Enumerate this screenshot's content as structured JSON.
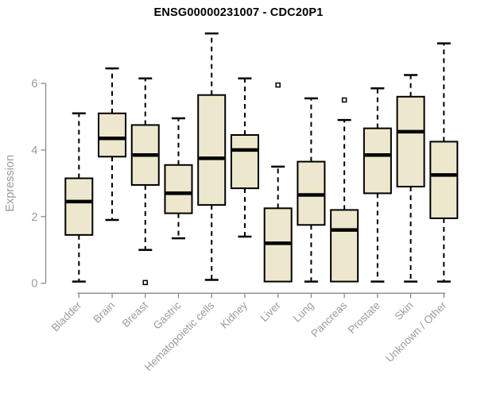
{
  "title": "ENSG00000231007 - CDC20P1",
  "colors": {
    "box_fill": "#EDE8CD",
    "box_border": "#000000",
    "median_line": "#000000",
    "whisker": "#000000",
    "outlier_stroke": "#000000",
    "outlier_fill": "#ffffff",
    "axis_line": "#8b8b8b",
    "tick_text": "#9b9b9b",
    "title_text": "#000000",
    "background": "#ffffff"
  },
  "chart_data": {
    "type": "boxplot",
    "title": "ENSG00000231007 - CDC20P1",
    "xlabel": "",
    "ylabel": "Expression",
    "yticks": [
      0,
      2,
      4,
      6
    ],
    "ylim": [
      0,
      7.6
    ],
    "grid": false,
    "legend": false,
    "categories": [
      "Bladder",
      "Brain",
      "Breast",
      "Gastric",
      "Hematopoietic cells",
      "Kidney",
      "Liver",
      "Lung",
      "Pancreas",
      "Prostate",
      "Skin",
      "Unknown / Other"
    ],
    "series": [
      {
        "name": "Bladder",
        "low": 0.05,
        "q1": 1.45,
        "median": 2.45,
        "q3": 3.15,
        "high": 5.1,
        "outliers": []
      },
      {
        "name": "Brain",
        "low": 1.9,
        "q1": 3.8,
        "median": 4.35,
        "q3": 5.1,
        "high": 6.45,
        "outliers": []
      },
      {
        "name": "Breast",
        "low": 1.0,
        "q1": 2.95,
        "median": 3.85,
        "q3": 4.75,
        "high": 6.15,
        "outliers": [
          0.02
        ]
      },
      {
        "name": "Gastric",
        "low": 1.35,
        "q1": 2.1,
        "median": 2.7,
        "q3": 3.55,
        "high": 4.95,
        "outliers": []
      },
      {
        "name": "Hematopoietic cells",
        "low": 0.1,
        "q1": 2.35,
        "median": 3.75,
        "q3": 5.65,
        "high": 7.5,
        "outliers": []
      },
      {
        "name": "Kidney",
        "low": 1.4,
        "q1": 2.85,
        "median": 4.0,
        "q3": 4.45,
        "high": 6.15,
        "outliers": []
      },
      {
        "name": "Liver",
        "low": 0.05,
        "q1": 0.05,
        "median": 1.2,
        "q3": 2.25,
        "high": 3.5,
        "outliers": [
          5.95
        ]
      },
      {
        "name": "Lung",
        "low": 0.05,
        "q1": 1.75,
        "median": 2.65,
        "q3": 3.65,
        "high": 5.55,
        "outliers": []
      },
      {
        "name": "Pancreas",
        "low": 0.05,
        "q1": 0.05,
        "median": 1.6,
        "q3": 2.2,
        "high": 4.9,
        "outliers": [
          5.5
        ]
      },
      {
        "name": "Prostate",
        "low": 0.05,
        "q1": 2.7,
        "median": 3.85,
        "q3": 4.65,
        "high": 5.85,
        "outliers": []
      },
      {
        "name": "Skin",
        "low": 0.05,
        "q1": 2.9,
        "median": 4.55,
        "q3": 5.6,
        "high": 6.25,
        "outliers": []
      },
      {
        "name": "Unknown / Other",
        "low": 0.05,
        "q1": 1.95,
        "median": 3.25,
        "q3": 4.25,
        "high": 7.2,
        "outliers": []
      }
    ]
  }
}
